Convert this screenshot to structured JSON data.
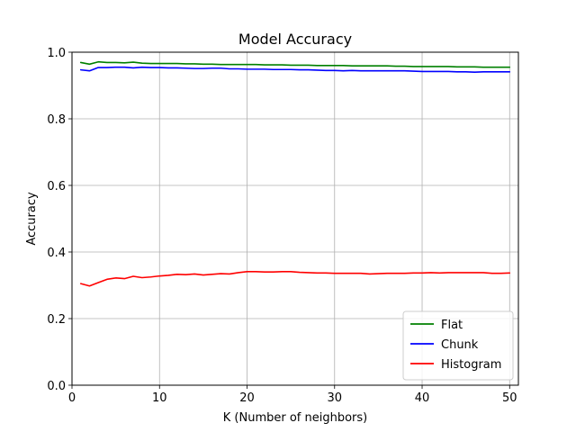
{
  "chart_data": {
    "type": "line",
    "title": "Model Accuracy",
    "xlabel": "K (Number of neighbors)",
    "ylabel": "Accuracy",
    "xlim": [
      0,
      51
    ],
    "ylim": [
      0.0,
      1.0
    ],
    "xticks": [
      0,
      10,
      20,
      30,
      40,
      50
    ],
    "yticks": [
      0.0,
      0.2,
      0.4,
      0.6,
      0.8,
      1.0
    ],
    "xtick_labels": [
      "0",
      "10",
      "20",
      "30",
      "40",
      "50"
    ],
    "ytick_labels": [
      "0.0",
      "0.2",
      "0.4",
      "0.6",
      "0.8",
      "1.0"
    ],
    "grid": true,
    "legend_position": "bottom-right",
    "x": [
      1,
      2,
      3,
      4,
      5,
      6,
      7,
      8,
      9,
      10,
      11,
      12,
      13,
      14,
      15,
      16,
      17,
      18,
      19,
      20,
      21,
      22,
      23,
      24,
      25,
      26,
      27,
      28,
      29,
      30,
      31,
      32,
      33,
      34,
      35,
      36,
      37,
      38,
      39,
      40,
      41,
      42,
      43,
      44,
      45,
      46,
      47,
      48,
      49,
      50
    ],
    "series": [
      {
        "name": "Flat",
        "color": "#008000",
        "values": [
          0.969,
          0.964,
          0.971,
          0.969,
          0.969,
          0.968,
          0.97,
          0.967,
          0.966,
          0.966,
          0.966,
          0.966,
          0.965,
          0.965,
          0.964,
          0.964,
          0.963,
          0.963,
          0.963,
          0.963,
          0.963,
          0.962,
          0.962,
          0.962,
          0.961,
          0.961,
          0.961,
          0.96,
          0.96,
          0.96,
          0.96,
          0.959,
          0.959,
          0.959,
          0.959,
          0.959,
          0.958,
          0.958,
          0.957,
          0.957,
          0.957,
          0.957,
          0.957,
          0.956,
          0.956,
          0.956,
          0.955,
          0.955,
          0.955,
          0.955
        ]
      },
      {
        "name": "Chunk",
        "color": "#0000ff",
        "values": [
          0.947,
          0.944,
          0.954,
          0.954,
          0.955,
          0.955,
          0.953,
          0.955,
          0.954,
          0.954,
          0.953,
          0.953,
          0.952,
          0.951,
          0.951,
          0.952,
          0.952,
          0.95,
          0.95,
          0.949,
          0.949,
          0.949,
          0.948,
          0.948,
          0.948,
          0.947,
          0.947,
          0.946,
          0.945,
          0.945,
          0.944,
          0.945,
          0.944,
          0.944,
          0.944,
          0.944,
          0.944,
          0.944,
          0.943,
          0.942,
          0.942,
          0.942,
          0.942,
          0.941,
          0.941,
          0.94,
          0.941,
          0.941,
          0.941,
          0.941
        ]
      },
      {
        "name": "Histogram",
        "color": "#ff0000",
        "values": [
          0.305,
          0.298,
          0.308,
          0.318,
          0.322,
          0.32,
          0.327,
          0.323,
          0.325,
          0.328,
          0.33,
          0.333,
          0.332,
          0.334,
          0.331,
          0.333,
          0.335,
          0.334,
          0.338,
          0.341,
          0.341,
          0.34,
          0.34,
          0.341,
          0.341,
          0.339,
          0.338,
          0.337,
          0.337,
          0.336,
          0.336,
          0.336,
          0.336,
          0.334,
          0.335,
          0.336,
          0.336,
          0.336,
          0.337,
          0.337,
          0.338,
          0.337,
          0.338,
          0.338,
          0.338,
          0.338,
          0.338,
          0.336,
          0.336,
          0.337
        ]
      }
    ]
  }
}
